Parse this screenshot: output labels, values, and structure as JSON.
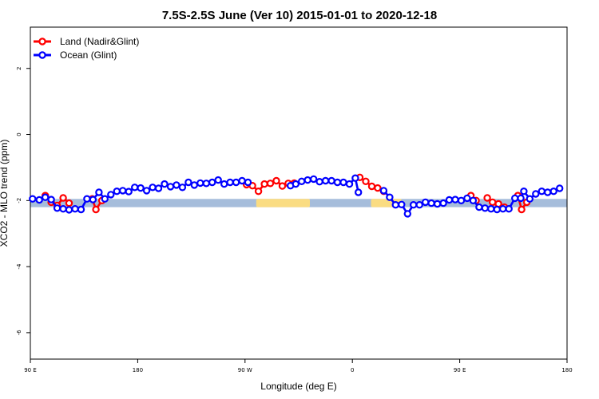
{
  "chart_data": {
    "type": "line",
    "title": "7.5S-2.5S June (Ver 10)   2015-01-01 to 2020-12-18",
    "xlabel": "Longitude (deg E)",
    "ylabel": "XCO2 - MLO trend (ppm)",
    "xlim": [
      90,
      450
    ],
    "ylim": [
      -6.8,
      3.25
    ],
    "x_ticks": [
      {
        "value": 90,
        "label": "90 E"
      },
      {
        "value": 162,
        "label": "180"
      },
      {
        "value": 234,
        "label": "90 W"
      },
      {
        "value": 306,
        "label": "0"
      },
      {
        "value": 378,
        "label": "90 E"
      },
      {
        "value": 450,
        "label": "180"
      }
    ],
    "y_ticks": [
      {
        "value": 2,
        "label": "2"
      },
      {
        "value": 0,
        "label": "0"
      },
      {
        "value": -2,
        "label": "-2"
      },
      {
        "value": -4,
        "label": "-4"
      },
      {
        "value": -6,
        "label": "-6"
      }
    ],
    "grid": false,
    "legend_position": "top-left",
    "colors": {
      "land": "#ff0000",
      "ocean": "#0000ff",
      "band_ocean": "#a6bddb",
      "band_land": "#fadc82"
    },
    "background_band": {
      "y_range": [
        -2.2,
        -1.95
      ],
      "land_segments": [
        [
          241.5,
          277.5
        ],
        [
          318.5,
          339
        ]
      ]
    },
    "series": [
      {
        "name": "Land (Nadir&Glint)",
        "color": "#ff0000",
        "segments": [
          [
            [
              100,
              -1.85
            ],
            [
              104,
              -2.05
            ],
            [
              108,
              -2.15
            ],
            [
              112,
              -1.92
            ],
            [
              116,
              -2.08
            ]
          ],
          [
            [
              131.5,
              -1.95
            ],
            [
              134,
              -2.27
            ],
            [
              138,
              -2.0
            ]
          ],
          [
            [
              235,
              -1.52
            ],
            [
              239,
              -1.55
            ],
            [
              243,
              -1.72
            ],
            [
              247,
              -1.5
            ],
            [
              251,
              -1.48
            ],
            [
              255,
              -1.4
            ],
            [
              259,
              -1.56
            ],
            [
              263,
              -1.48
            ],
            [
              267,
              -1.47
            ]
          ],
          [
            [
              311,
              -1.3
            ],
            [
              315,
              -1.42
            ],
            [
              319,
              -1.57
            ],
            [
              323,
              -1.62
            ],
            [
              327,
              -1.72
            ]
          ],
          [
            [
              385.5,
              -1.85
            ],
            [
              389,
              -2.0
            ]
          ],
          [
            [
              396.5,
              -1.92
            ],
            [
              400,
              -2.05
            ],
            [
              404,
              -2.1
            ],
            [
              408,
              -2.2
            ]
          ],
          [
            [
              417,
              -1.85
            ],
            [
              419.5,
              -2.27
            ],
            [
              423,
              -2.05
            ]
          ]
        ]
      },
      {
        "name": "Ocean (Glint)",
        "color": "#0000ff",
        "segments": [
          [
            [
              91.5,
              -1.95
            ],
            [
              96,
              -1.98
            ],
            [
              100,
              -1.9
            ],
            [
              104,
              -1.97
            ],
            [
              108,
              -2.23
            ],
            [
              112,
              -2.25
            ],
            [
              116,
              -2.28
            ],
            [
              120,
              -2.25
            ],
            [
              124,
              -2.27
            ],
            [
              128,
              -1.95
            ],
            [
              132,
              -1.97
            ],
            [
              136,
              -1.75
            ],
            [
              140,
              -1.95
            ],
            [
              144,
              -1.82
            ],
            [
              148,
              -1.72
            ],
            [
              152,
              -1.7
            ],
            [
              156,
              -1.73
            ],
            [
              160,
              -1.6
            ],
            [
              164,
              -1.62
            ],
            [
              168,
              -1.7
            ],
            [
              172,
              -1.6
            ],
            [
              176,
              -1.63
            ],
            [
              180,
              -1.5
            ],
            [
              184,
              -1.58
            ],
            [
              188,
              -1.53
            ],
            [
              192,
              -1.6
            ],
            [
              196,
              -1.45
            ],
            [
              200,
              -1.53
            ],
            [
              204,
              -1.47
            ],
            [
              208,
              -1.48
            ],
            [
              212,
              -1.45
            ],
            [
              216,
              -1.38
            ],
            [
              220,
              -1.5
            ],
            [
              224,
              -1.45
            ],
            [
              228,
              -1.45
            ],
            [
              232,
              -1.4
            ],
            [
              236,
              -1.45
            ]
          ],
          [
            [
              264.5,
              -1.55
            ],
            [
              268,
              -1.5
            ],
            [
              272,
              -1.42
            ],
            [
              276,
              -1.38
            ],
            [
              280,
              -1.35
            ],
            [
              284,
              -1.43
            ],
            [
              288,
              -1.4
            ],
            [
              292,
              -1.4
            ],
            [
              296,
              -1.45
            ],
            [
              300,
              -1.45
            ],
            [
              304,
              -1.5
            ],
            [
              308,
              -1.32
            ],
            [
              310,
              -1.75
            ]
          ],
          [
            [
              327,
              -1.7
            ],
            [
              331,
              -1.9
            ],
            [
              335,
              -2.13
            ],
            [
              339,
              -2.12
            ],
            [
              343,
              -2.4
            ],
            [
              347,
              -2.13
            ],
            [
              351,
              -2.13
            ],
            [
              355,
              -2.05
            ],
            [
              359,
              -2.08
            ],
            [
              363,
              -2.1
            ],
            [
              367,
              -2.08
            ],
            [
              371,
              -1.98
            ],
            [
              375,
              -1.97
            ],
            [
              379,
              -2.0
            ],
            [
              383,
              -1.93
            ],
            [
              387,
              -2.0
            ],
            [
              391,
              -2.2
            ],
            [
              395,
              -2.23
            ],
            [
              399,
              -2.25
            ],
            [
              403,
              -2.27
            ],
            [
              407,
              -2.25
            ],
            [
              411,
              -2.25
            ],
            [
              415,
              -1.93
            ],
            [
              419,
              -1.93
            ],
            [
              421,
              -1.72
            ],
            [
              425,
              -1.95
            ],
            [
              429,
              -1.8
            ],
            [
              433,
              -1.72
            ],
            [
              437,
              -1.75
            ],
            [
              441,
              -1.72
            ],
            [
              445,
              -1.63
            ]
          ]
        ]
      }
    ]
  }
}
